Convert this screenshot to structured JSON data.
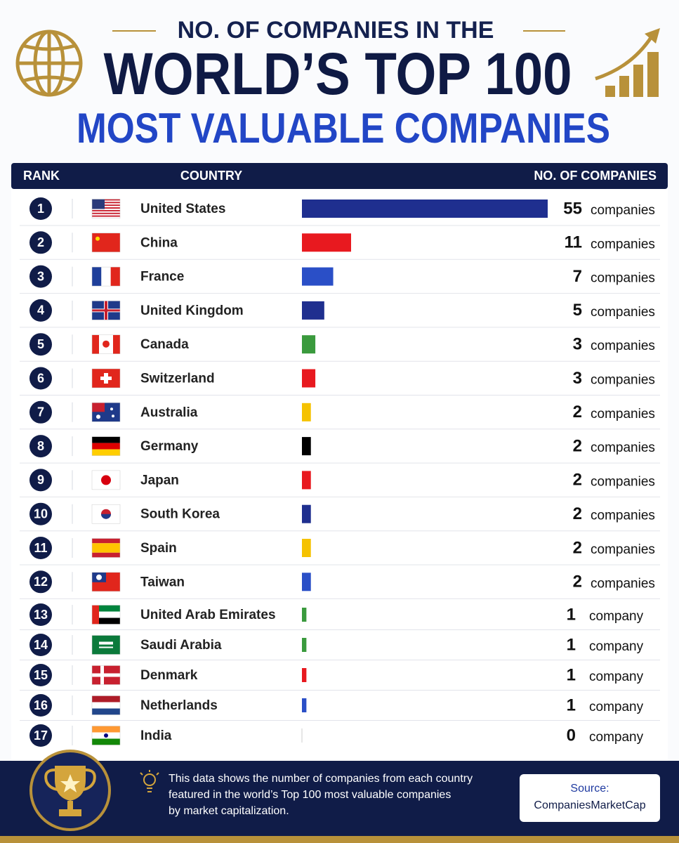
{
  "chart_data": {
    "type": "bar",
    "orientation": "horizontal",
    "title_top": "NO. OF COMPANIES IN THE",
    "title": "WORLD’S TOP 100",
    "subtitle": "MOST VALUABLE COMPANIES",
    "headers": {
      "rank": "RANK",
      "country": "COUNTRY",
      "count": "NO. OF COMPANIES"
    },
    "ranks": [
      1,
      2,
      3,
      4,
      5,
      6,
      7,
      8,
      9,
      10,
      11,
      12,
      13,
      14,
      15,
      16,
      17
    ],
    "categories": [
      "United States",
      "China",
      "France",
      "United Kingdom",
      "Canada",
      "Switzerland",
      "Australia",
      "Germany",
      "Japan",
      "South Korea",
      "Spain",
      "Taiwan",
      "United Arab Emirates",
      "Saudi Arabia",
      "Denmark",
      "Netherlands",
      "India"
    ],
    "values": [
      55,
      11,
      7,
      5,
      3,
      3,
      2,
      2,
      2,
      2,
      2,
      2,
      1,
      1,
      1,
      1,
      0
    ],
    "units": [
      "companies",
      "companies",
      "companies",
      "companies",
      "companies",
      "companies",
      "companies",
      "companies",
      "companies",
      "companies",
      "companies",
      "companies",
      "company",
      "company",
      "company",
      "company",
      "company"
    ],
    "colors": [
      "#1f2f8f",
      "#e8191f",
      "#2a4fc7",
      "#1f2f8f",
      "#3a9a3d",
      "#e8191f",
      "#f5c200",
      "#000000",
      "#e8191f",
      "#1f2f8f",
      "#f5c200",
      "#2a4fc7",
      "#3a9a3d",
      "#3a9a3d",
      "#e8191f",
      "#2a4fc7",
      "#cccccc"
    ],
    "xlim": [
      0,
      55
    ],
    "note": [
      "This data shows the number of companies from each country",
      "featured in the world’s Top 100 most valuable companies",
      "by market capitalization."
    ],
    "source_label": "Source:",
    "source": "CompaniesMarketCap"
  }
}
